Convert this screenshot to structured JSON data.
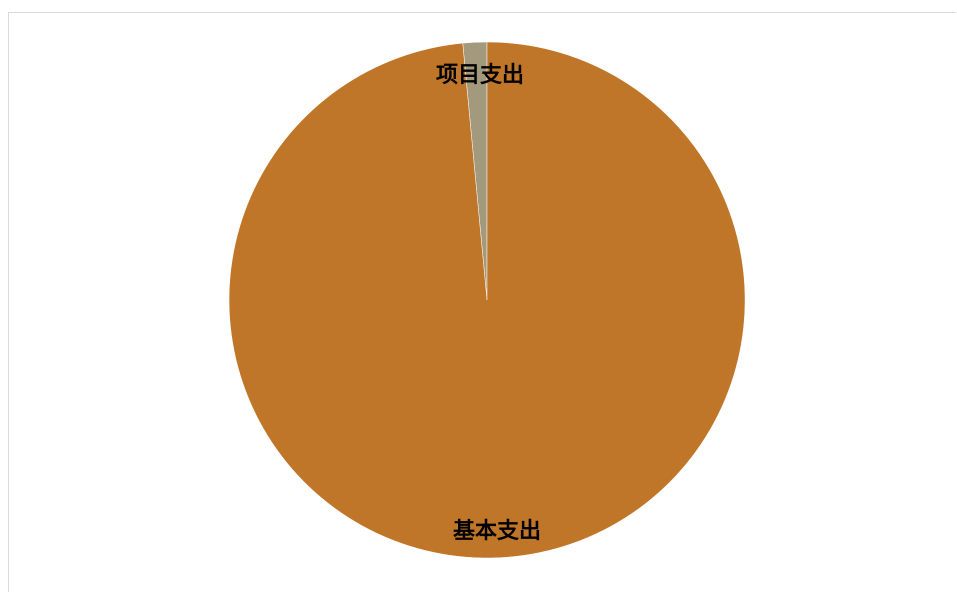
{
  "chart_data": {
    "type": "pie",
    "title": "",
    "categories": [
      "基本支出",
      "项目支出"
    ],
    "values": [
      98.5,
      1.5
    ],
    "colors": [
      "#C07629",
      "#A39A7E"
    ],
    "legend": "none"
  }
}
